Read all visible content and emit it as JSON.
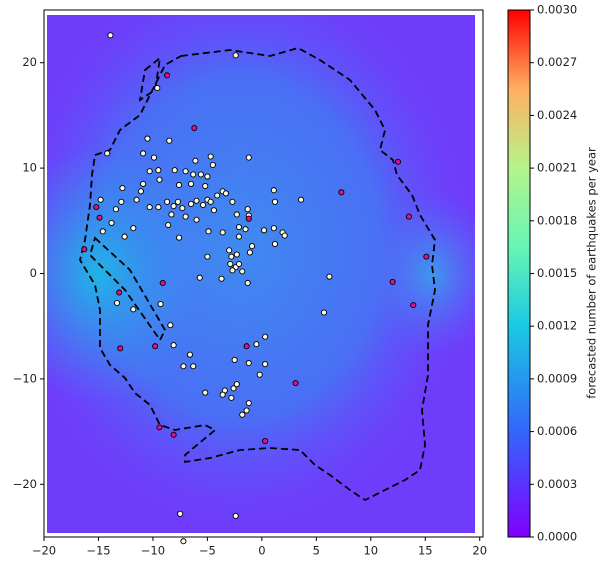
{
  "chart_data": {
    "type": "scatter",
    "xlim": [
      -20,
      20.3
    ],
    "ylim": [
      -25,
      25
    ],
    "xticks": [
      {
        "value": -20,
        "label": "−20"
      },
      {
        "value": -15,
        "label": "−15"
      },
      {
        "value": -10,
        "label": "−10"
      },
      {
        "value": -5,
        "label": "−5"
      },
      0,
      5,
      10,
      15,
      20
    ],
    "yticks": [
      {
        "value": -20,
        "label": "−20"
      },
      {
        "value": -10,
        "label": "−10"
      },
      0,
      10,
      20
    ],
    "series": [
      {
        "color": "#fffde0",
        "x": [
          -13.9,
          -2.4,
          -14.2,
          -9.6,
          -10.5,
          -10.9,
          -9.9,
          -8.5,
          -9.5,
          -10.3,
          -9.4,
          -10.9,
          -11.1,
          -11.5,
          -12.8,
          -12.9,
          -13.4,
          -14.8,
          -13.8,
          -14.6,
          -12.6,
          -11.8,
          -10.3,
          -9.5,
          -8.7,
          -8.1,
          -7.7,
          -7.3,
          -8.3,
          -8.6,
          -7.6,
          -7.0,
          -6.5,
          -6.0,
          -5.4,
          -5.0,
          -4.7,
          -4.4,
          -4.1,
          -3.6,
          -3.3,
          -2.7,
          -2.3,
          -1.3,
          -1.2,
          -5.2,
          -5.0,
          -5.6,
          -6.3,
          -6.5,
          -7.0,
          -8.0,
          -4.5,
          -4.7,
          -6.1,
          -7.6,
          -6.0,
          -1.2,
          1.1,
          3.6,
          1.2,
          -2.1,
          -1.5,
          0.2,
          1.1,
          1.9,
          2.1,
          1.2,
          -0.9,
          -2.1,
          -3.6,
          -4.9,
          -5.0,
          -3.0,
          -2.8,
          -2.3,
          -1.1,
          -2.9,
          -2.4,
          -2.1,
          -2.7,
          -1.8,
          -5.7,
          -3.7,
          -1.3,
          6.2,
          5.7,
          -11.8,
          -13.3,
          -9.3,
          -8.4,
          -8.1,
          -6.6,
          -7.2,
          -6.3,
          -2.5,
          -1.2,
          -0.5,
          0.3,
          0.3,
          -0.2,
          -2.3,
          -2.6,
          -3.4,
          -3.6,
          -2.8,
          -5.2,
          -1.2,
          -1.4,
          -1.8,
          -7.5,
          -2.4,
          -7.2
        ],
        "y": [
          22.6,
          20.7,
          11.4,
          17.6,
          12.8,
          11.4,
          11.0,
          12.6,
          9.8,
          9.7,
          8.9,
          8.5,
          7.8,
          7.0,
          8.1,
          6.8,
          6.1,
          7.0,
          4.8,
          4.0,
          3.5,
          4.3,
          6.3,
          6.3,
          6.8,
          6.4,
          6.8,
          6.2,
          5.6,
          4.6,
          3.4,
          5.4,
          6.6,
          6.9,
          6.5,
          7.0,
          6.8,
          6.0,
          7.4,
          7.8,
          7.6,
          6.8,
          5.6,
          6.1,
          5.5,
          8.3,
          9.2,
          9.4,
          9.4,
          8.5,
          9.7,
          9.8,
          10.3,
          11.1,
          10.7,
          8.4,
          5.1,
          11.0,
          7.9,
          7.0,
          6.8,
          4.4,
          4.2,
          4.1,
          4.3,
          3.9,
          3.6,
          2.8,
          2.6,
          3.5,
          3.9,
          4.0,
          1.6,
          2.2,
          1.6,
          1.8,
          2.0,
          0.9,
          0.6,
          0.9,
          0.3,
          0.2,
          -0.4,
          -0.5,
          -0.9,
          -0.3,
          -3.7,
          -3.4,
          -2.8,
          -2.9,
          -4.9,
          -6.8,
          -7.7,
          -8.8,
          -8.8,
          -8.2,
          -8.5,
          -6.7,
          -6.0,
          -8.6,
          -9.6,
          -10.5,
          -10.9,
          -11.1,
          -11.5,
          -11.8,
          -11.3,
          -12.3,
          -13.0,
          -13.4,
          -22.8,
          -23.0,
          -25.4
        ]
      },
      {
        "color": "#e0108a",
        "x": [
          -8.7,
          -6.2,
          -15.2,
          -14.9,
          -16.3,
          -13.1,
          -9.1,
          -9.8,
          -13.0,
          -9.4,
          -8.1,
          -1.4,
          3.1,
          0.3,
          7.3,
          12.5,
          13.5,
          12.0,
          15.1,
          13.9,
          -1.2
        ],
        "y": [
          18.8,
          13.8,
          6.3,
          5.3,
          2.3,
          -1.8,
          -0.9,
          -6.9,
          -7.1,
          -14.6,
          -15.3,
          -6.9,
          -10.4,
          -15.9,
          7.7,
          10.6,
          5.4,
          -0.8,
          1.6,
          -3.0,
          5.2
        ]
      }
    ],
    "colorbar": {
      "label": "forecasted number of earthquakes per year",
      "lim": [
        0,
        0.003
      ],
      "ticks": [
        {
          "value": 0,
          "label": "0.0000"
        },
        {
          "value": 0.0003,
          "label": "0.0003"
        },
        {
          "value": 0.0006,
          "label": "0.0006"
        },
        {
          "value": 0.0009,
          "label": "0.0009"
        },
        {
          "value": 0.0012,
          "label": "0.0012"
        },
        {
          "value": 0.0015,
          "label": "0.0015"
        },
        {
          "value": 0.0018,
          "label": "0.0018"
        },
        {
          "value": 0.0021,
          "label": "0.0021"
        },
        {
          "value": 0.0024,
          "label": "0.0024"
        },
        {
          "value": 0.0027,
          "label": "0.0027"
        },
        {
          "value": 0.003,
          "label": "0.0030"
        }
      ]
    }
  }
}
